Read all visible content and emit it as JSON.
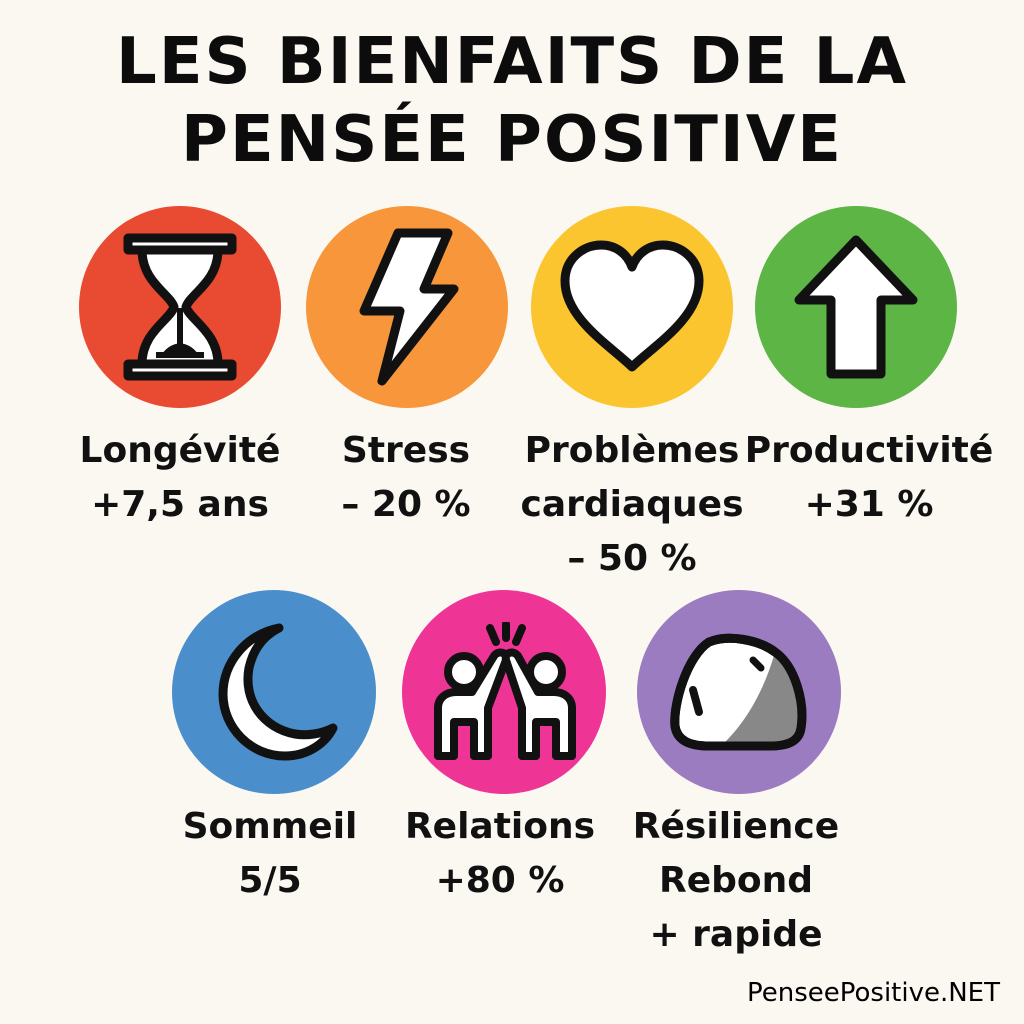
{
  "title": {
    "line1": "LES BIENFAITS DE LA",
    "line2": "PENSÉE POSITIVE"
  },
  "benefits": [
    {
      "name": "Longévité",
      "value": "+7,5 ans",
      "icon": "hourglass-icon",
      "color": "#e84b32"
    },
    {
      "name": "Stress",
      "value": "– 20 %",
      "icon": "lightning-bolt-icon",
      "color": "#f7963a"
    },
    {
      "name": "Problèmes",
      "name2": "cardiaques",
      "value": "– 50 %",
      "icon": "heart-icon",
      "color": "#fbc52f"
    },
    {
      "name": "Productivité",
      "value": "+31 %",
      "icon": "up-arrow-icon",
      "color": "#5cb545"
    },
    {
      "name": "Sommeil",
      "value": "5/5",
      "icon": "crescent-moon-icon",
      "color": "#4a8fcc"
    },
    {
      "name": "Relations",
      "value": "+80 %",
      "icon": "high-five-icon",
      "color": "#ee3596"
    },
    {
      "name": "Résilience",
      "name2": "Rebond",
      "value": "+ rapide",
      "icon": "bouncing-stone-icon",
      "color": "#9c7cc0"
    }
  ],
  "footer": "PenseePositive.NET"
}
